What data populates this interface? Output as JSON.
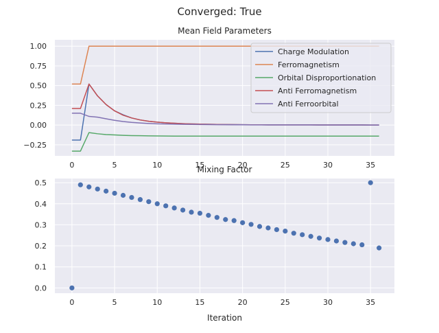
{
  "figure": {
    "suptitle": "Converged: True"
  },
  "colors": {
    "plot_bg": "#eaeaf2",
    "grid": "#ffffff",
    "text": "#262626",
    "charge_modulation": "#4c72b0",
    "ferromagnetism": "#dd8452",
    "orbital_disproportionation": "#55a868",
    "anti_ferromagnetism": "#c44e52",
    "anti_ferroorbital": "#8172b3",
    "scatter": "#4c72b0"
  },
  "chart_data": [
    {
      "type": "line",
      "title": "Mean Field Parameters",
      "xlabel": "",
      "ylabel": "",
      "xlim": [
        -2,
        37.8
      ],
      "ylim": [
        -0.39,
        1.08
      ],
      "xticks": [
        0,
        5,
        10,
        15,
        20,
        25,
        30,
        35
      ],
      "yticks": [
        -0.25,
        0.0,
        0.25,
        0.5,
        0.75,
        1.0
      ],
      "ytick_labels": [
        "−0.25",
        "0.00",
        "0.25",
        "0.50",
        "0.75",
        "1.00"
      ],
      "grid": true,
      "legend": "top-right",
      "x": [
        0,
        1,
        2,
        3,
        4,
        5,
        6,
        7,
        8,
        9,
        10,
        11,
        12,
        13,
        14,
        15,
        16,
        17,
        18,
        19,
        20,
        21,
        22,
        23,
        24,
        25,
        26,
        27,
        28,
        29,
        30,
        31,
        32,
        33,
        34,
        35,
        36
      ],
      "series": [
        {
          "name": "Charge Modulation",
          "color_key": "charge_modulation",
          "values": [
            -0.19,
            -0.19,
            0.52,
            0.37,
            0.26,
            0.18,
            0.13,
            0.09,
            0.065,
            0.048,
            0.037,
            0.029,
            0.023,
            0.018,
            0.015,
            0.012,
            0.01,
            0.008,
            0.007,
            0.006,
            0.005,
            0.004,
            0.004,
            0.003,
            0.003,
            0.002,
            0.002,
            0.002,
            0.002,
            0.001,
            0.001,
            0.001,
            0.001,
            0.001,
            0.001,
            0.0,
            0.0
          ]
        },
        {
          "name": "Ferromagnetism",
          "color_key": "ferromagnetism",
          "values": [
            0.52,
            0.52,
            1.0,
            1.0,
            1.0,
            1.0,
            1.0,
            1.0,
            1.0,
            1.0,
            1.0,
            1.0,
            1.0,
            1.0,
            1.0,
            1.0,
            1.0,
            1.0,
            1.0,
            1.0,
            1.0,
            1.0,
            1.0,
            1.0,
            1.0,
            1.0,
            1.0,
            1.0,
            1.0,
            1.0,
            1.0,
            1.0,
            1.0,
            1.0,
            1.0,
            1.0,
            1.0
          ]
        },
        {
          "name": "Orbital Disproportionation",
          "color_key": "orbital_disproportionation",
          "values": [
            -0.33,
            -0.33,
            -0.095,
            -0.11,
            -0.12,
            -0.125,
            -0.13,
            -0.133,
            -0.135,
            -0.137,
            -0.138,
            -0.139,
            -0.14,
            -0.14,
            -0.14,
            -0.14,
            -0.14,
            -0.14,
            -0.14,
            -0.14,
            -0.14,
            -0.14,
            -0.14,
            -0.14,
            -0.14,
            -0.14,
            -0.14,
            -0.14,
            -0.14,
            -0.14,
            -0.14,
            -0.14,
            -0.14,
            -0.14,
            -0.14,
            -0.14,
            -0.14
          ]
        },
        {
          "name": "Anti Ferromagnetism",
          "color_key": "anti_ferromagnetism",
          "values": [
            0.21,
            0.21,
            0.52,
            0.37,
            0.26,
            0.18,
            0.125,
            0.09,
            0.065,
            0.048,
            0.037,
            0.029,
            0.023,
            0.018,
            0.015,
            0.012,
            0.01,
            0.008,
            0.007,
            0.006,
            0.005,
            0.004,
            0.004,
            0.003,
            0.003,
            0.002,
            0.002,
            0.002,
            0.002,
            0.001,
            0.001,
            0.001,
            0.001,
            0.001,
            0.001,
            0.0,
            0.0
          ]
        },
        {
          "name": "Anti Ferroorbital",
          "color_key": "anti_ferroorbital",
          "values": [
            0.15,
            0.15,
            0.11,
            0.1,
            0.08,
            0.06,
            0.045,
            0.034,
            0.026,
            0.02,
            0.016,
            0.013,
            0.011,
            0.009,
            0.008,
            0.007,
            0.006,
            0.005,
            0.005,
            0.004,
            0.004,
            0.003,
            0.003,
            0.003,
            0.002,
            0.002,
            0.002,
            0.002,
            0.002,
            0.001,
            0.001,
            0.001,
            0.001,
            0.001,
            0.001,
            0.0,
            0.0
          ]
        }
      ]
    },
    {
      "type": "scatter",
      "title": "Mixing Factor",
      "xlabel": "Iteration",
      "ylabel": "",
      "xlim": [
        -2,
        37.8
      ],
      "ylim": [
        -0.025,
        0.52
      ],
      "xticks": [
        0,
        5,
        10,
        15,
        20,
        25,
        30,
        35
      ],
      "yticks": [
        0.0,
        0.1,
        0.2,
        0.3,
        0.4,
        0.5
      ],
      "ytick_labels": [
        "0.0",
        "0.1",
        "0.2",
        "0.3",
        "0.4",
        "0.5"
      ],
      "grid": true,
      "x": [
        0,
        1,
        2,
        3,
        4,
        5,
        6,
        7,
        8,
        9,
        10,
        11,
        12,
        13,
        14,
        15,
        16,
        17,
        18,
        19,
        20,
        21,
        22,
        23,
        24,
        25,
        26,
        27,
        28,
        29,
        30,
        31,
        32,
        33,
        34,
        35,
        36
      ],
      "values": [
        0.0,
        0.49,
        0.48,
        0.47,
        0.46,
        0.45,
        0.44,
        0.43,
        0.42,
        0.41,
        0.4,
        0.39,
        0.38,
        0.37,
        0.36,
        0.355,
        0.345,
        0.335,
        0.325,
        0.32,
        0.31,
        0.302,
        0.292,
        0.285,
        0.277,
        0.27,
        0.26,
        0.253,
        0.245,
        0.237,
        0.23,
        0.223,
        0.216,
        0.21,
        0.205,
        0.5,
        0.19
      ]
    }
  ]
}
